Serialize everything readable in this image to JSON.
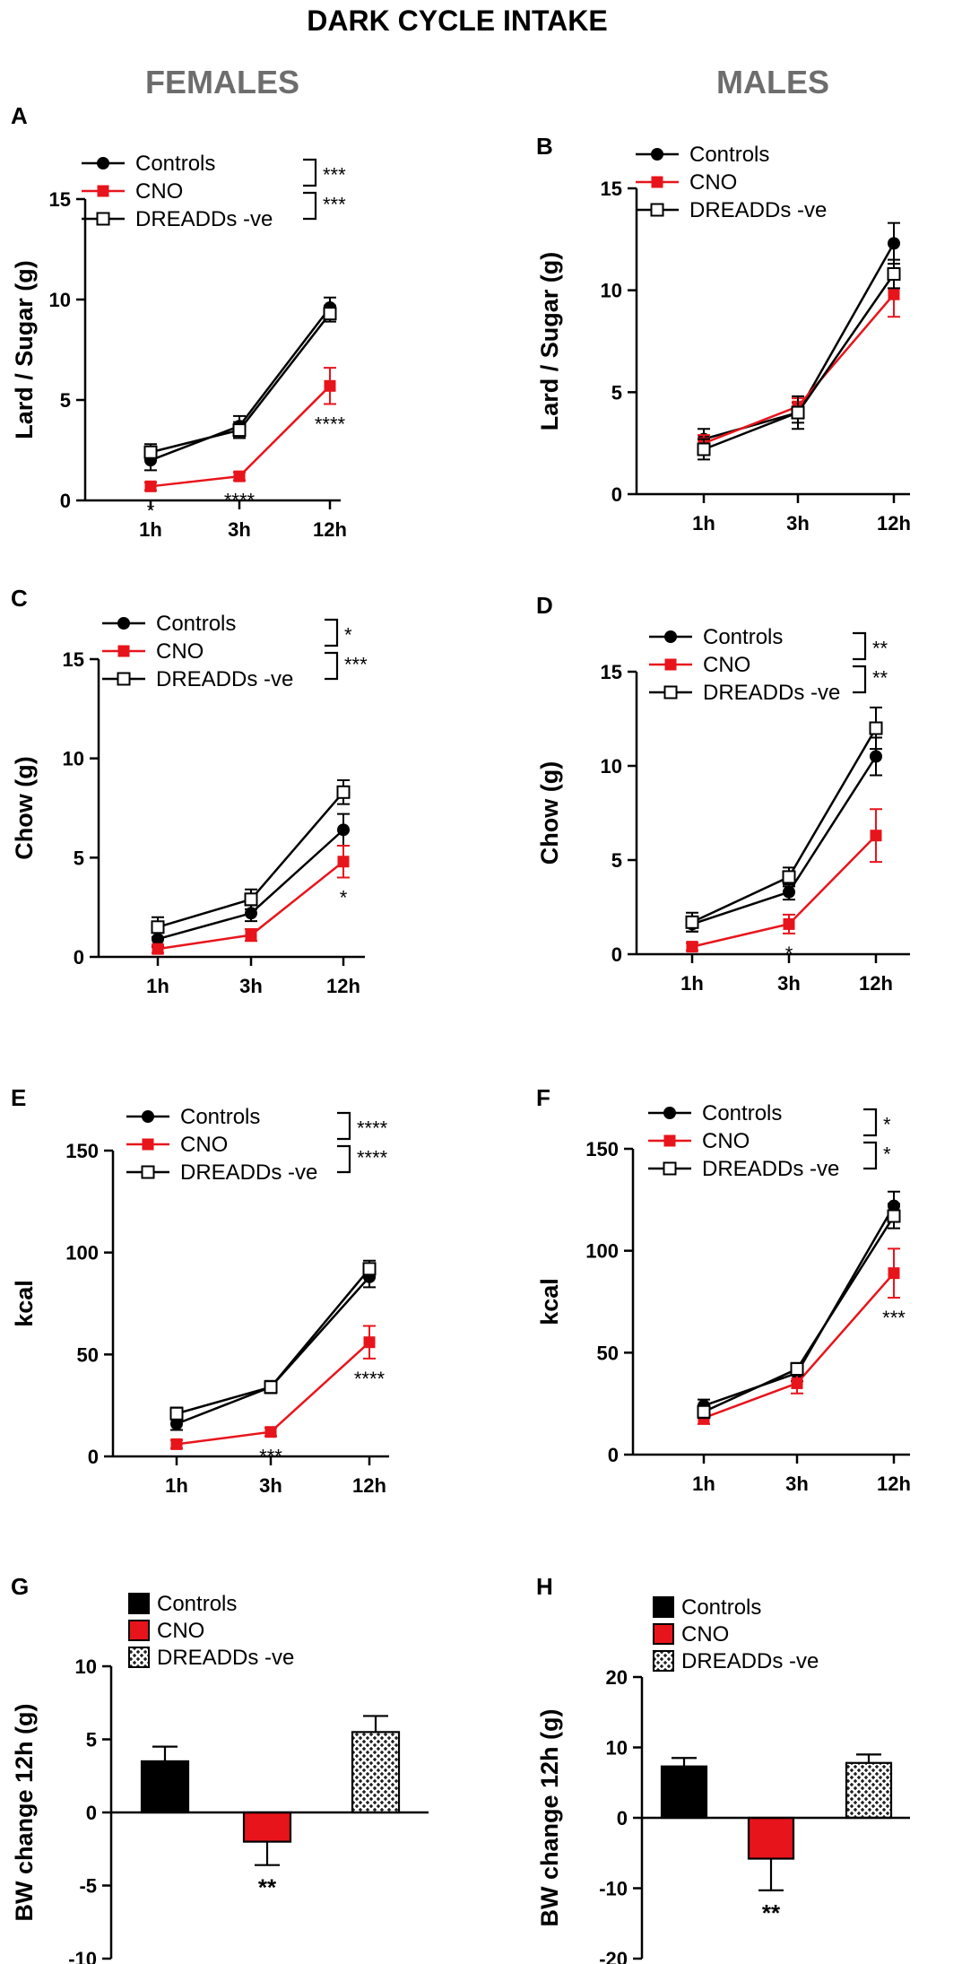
{
  "figure": {
    "title": "DARK CYCLE INTAKE",
    "col_left": "FEMALES",
    "col_right": "MALES",
    "colors": {
      "controls": "#000000",
      "cno": "#e8141b",
      "dreadds": "#000000",
      "heading_gray": "#6d6d6d"
    },
    "legend_labels": [
      "Controls",
      "CNO",
      "DREADDs -ve"
    ]
  },
  "chart_data": [
    {
      "panel": "A",
      "type": "line",
      "ylabel": "Lard / Sugar (g)",
      "ylim": [
        0,
        15
      ],
      "yticks": [
        0,
        5,
        10,
        15
      ],
      "categories": [
        "1h",
        "3h",
        "12h"
      ],
      "series": [
        {
          "name": "Controls",
          "values": [
            2.0,
            3.7,
            9.6
          ],
          "errors": [
            0.5,
            0.5,
            0.5
          ]
        },
        {
          "name": "CNO",
          "values": [
            0.7,
            1.2,
            5.7
          ],
          "errors": [
            0.2,
            0.2,
            0.9
          ]
        },
        {
          "name": "DREADDs -ve",
          "values": [
            2.4,
            3.5,
            9.3
          ],
          "errors": [
            0.4,
            0.4,
            0.4
          ]
        }
      ],
      "point_sig": [
        "*",
        "****",
        "****"
      ],
      "bracket_sig": [
        "***",
        "***"
      ]
    },
    {
      "panel": "B",
      "type": "line",
      "ylabel": "Lard / Sugar (g)",
      "ylim": [
        0,
        15
      ],
      "yticks": [
        0,
        5,
        10,
        15
      ],
      "categories": [
        "1h",
        "3h",
        "12h"
      ],
      "series": [
        {
          "name": "Controls",
          "values": [
            2.7,
            4.0,
            12.3
          ],
          "errors": [
            0.5,
            0.5,
            1.0
          ]
        },
        {
          "name": "CNO",
          "values": [
            2.5,
            4.3,
            9.8
          ],
          "errors": [
            0.4,
            0.4,
            1.1
          ]
        },
        {
          "name": "DREADDs -ve",
          "values": [
            2.2,
            4.0,
            10.8
          ],
          "errors": [
            0.5,
            0.8,
            0.7
          ]
        }
      ],
      "point_sig": [
        "",
        "",
        ""
      ],
      "bracket_sig": []
    },
    {
      "panel": "C",
      "type": "line",
      "ylabel": "Chow (g)",
      "ylim": [
        0,
        15
      ],
      "yticks": [
        0,
        5,
        10,
        15
      ],
      "categories": [
        "1h",
        "3h",
        "12h"
      ],
      "series": [
        {
          "name": "Controls",
          "values": [
            0.9,
            2.2,
            6.4
          ],
          "errors": [
            0.4,
            0.4,
            0.8
          ]
        },
        {
          "name": "CNO",
          "values": [
            0.4,
            1.1,
            4.8
          ],
          "errors": [
            0.2,
            0.3,
            0.8
          ]
        },
        {
          "name": "DREADDs -ve",
          "values": [
            1.5,
            2.9,
            8.3
          ],
          "errors": [
            0.5,
            0.5,
            0.6
          ]
        }
      ],
      "point_sig": [
        "",
        "",
        "*"
      ],
      "bracket_sig": [
        "*",
        "***"
      ]
    },
    {
      "panel": "D",
      "type": "line",
      "ylabel": "Chow (g)",
      "ylim": [
        0,
        15
      ],
      "yticks": [
        0,
        5,
        10,
        15
      ],
      "categories": [
        "1h",
        "3h",
        "12h"
      ],
      "series": [
        {
          "name": "Controls",
          "values": [
            1.6,
            3.3,
            10.5
          ],
          "errors": [
            0.4,
            0.4,
            1.0
          ]
        },
        {
          "name": "CNO",
          "values": [
            0.4,
            1.6,
            6.3
          ],
          "errors": [
            0.2,
            0.5,
            1.4
          ]
        },
        {
          "name": "DREADDs -ve",
          "values": [
            1.7,
            4.1,
            12.0
          ],
          "errors": [
            0.5,
            0.5,
            1.1
          ]
        }
      ],
      "point_sig": [
        "",
        "*",
        ""
      ],
      "bracket_sig": [
        "**",
        "**"
      ]
    },
    {
      "panel": "E",
      "type": "line",
      "ylabel": "kcal",
      "ylim": [
        0,
        150
      ],
      "yticks": [
        0,
        50,
        100,
        150
      ],
      "categories": [
        "1h",
        "3h",
        "12h"
      ],
      "series": [
        {
          "name": "Controls",
          "values": [
            16,
            34,
            88
          ],
          "errors": [
            3,
            3,
            5
          ]
        },
        {
          "name": "CNO",
          "values": [
            6,
            12,
            56
          ],
          "errors": [
            2,
            2,
            8
          ]
        },
        {
          "name": "DREADDs -ve",
          "values": [
            21,
            34,
            92
          ],
          "errors": [
            3,
            3,
            4
          ]
        }
      ],
      "point_sig": [
        "",
        "***",
        "****"
      ],
      "bracket_sig": [
        "****",
        "****"
      ]
    },
    {
      "panel": "F",
      "type": "line",
      "ylabel": "kcal",
      "ylim": [
        0,
        150
      ],
      "yticks": [
        0,
        50,
        100,
        150
      ],
      "categories": [
        "1h",
        "3h",
        "12h"
      ],
      "series": [
        {
          "name": "Controls",
          "values": [
            24,
            40,
            122
          ],
          "errors": [
            3,
            4,
            7
          ]
        },
        {
          "name": "CNO",
          "values": [
            18,
            35,
            89
          ],
          "errors": [
            3,
            5,
            12
          ]
        },
        {
          "name": "DREADDs -ve",
          "values": [
            21,
            42,
            117
          ],
          "errors": [
            3,
            3,
            6
          ]
        }
      ],
      "point_sig": [
        "",
        "",
        "***"
      ],
      "bracket_sig": [
        "*",
        "*"
      ]
    },
    {
      "panel": "G",
      "type": "bar",
      "ylabel": "BW change 12h (g)",
      "ylim": [
        -10,
        10
      ],
      "yticks": [
        -10,
        -5,
        0,
        5,
        10
      ],
      "categories": [
        "Controls",
        "CNO",
        "DREADDs -ve"
      ],
      "values": [
        3.5,
        -2.0,
        5.5
      ],
      "errors": [
        1.0,
        1.6,
        1.1
      ],
      "bar_sig": [
        "",
        "**",
        ""
      ]
    },
    {
      "panel": "H",
      "type": "bar",
      "ylabel": "BW change 12h (g)",
      "ylim": [
        -20,
        20
      ],
      "yticks": [
        -20,
        -10,
        0,
        10,
        20
      ],
      "categories": [
        "Controls",
        "CNO",
        "DREADDs -ve"
      ],
      "values": [
        7.3,
        -5.8,
        7.8
      ],
      "errors": [
        1.2,
        4.5,
        1.2
      ],
      "bar_sig": [
        "",
        "**",
        ""
      ]
    }
  ]
}
